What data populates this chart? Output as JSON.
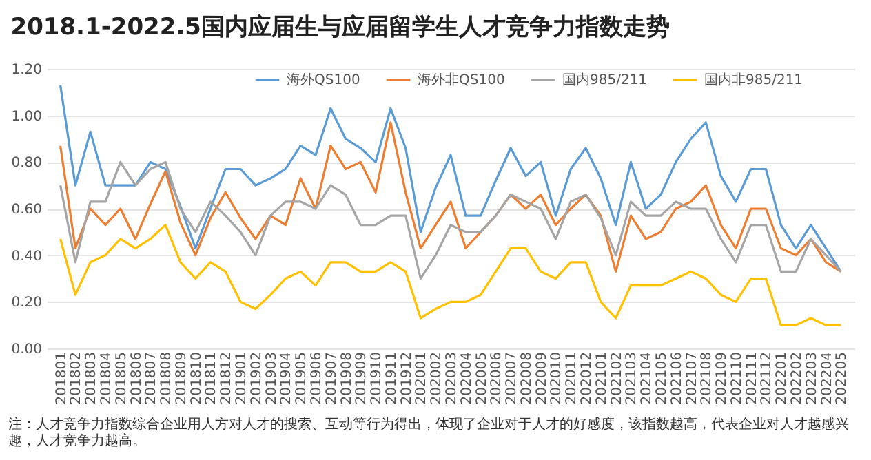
{
  "chart_data": {
    "type": "line",
    "title": "2018.1-2022.5国内应届生与应届留学生人才竞争力指数走势",
    "categories": [
      "201801",
      "201802",
      "201803",
      "201804",
      "201805",
      "201806",
      "201807",
      "201808",
      "201809",
      "201810",
      "201811",
      "201812",
      "201901",
      "201902",
      "201903",
      "201904",
      "201905",
      "201906",
      "201907",
      "201908",
      "201909",
      "201910",
      "201911",
      "201912",
      "202001",
      "202002",
      "202003",
      "202004",
      "202005",
      "202006",
      "202007",
      "202008",
      "202009",
      "202010",
      "202011",
      "202012",
      "202101",
      "202102",
      "202103",
      "202104",
      "202105",
      "202106",
      "202107",
      "202108",
      "202109",
      "202110",
      "202111",
      "202112",
      "202201",
      "202202",
      "202203",
      "202204",
      "202205"
    ],
    "series": [
      {
        "name": "海外QS100",
        "color": "#5b9bd5",
        "values": [
          1.13,
          0.7,
          0.93,
          0.7,
          0.7,
          0.7,
          0.8,
          0.77,
          0.61,
          0.43,
          0.6,
          0.77,
          0.77,
          0.7,
          0.73,
          0.77,
          0.87,
          0.83,
          1.03,
          0.9,
          0.86,
          0.8,
          1.03,
          0.86,
          0.5,
          0.69,
          0.83,
          0.57,
          0.57,
          0.72,
          0.86,
          0.74,
          0.8,
          0.57,
          0.77,
          0.86,
          0.73,
          0.53,
          0.8,
          0.6,
          0.66,
          0.8,
          0.9,
          0.97,
          0.74,
          0.63,
          0.77,
          0.77,
          0.53,
          0.43,
          0.53,
          0.43,
          0.33
        ]
      },
      {
        "name": "海外非QS100",
        "color": "#ed7d31",
        "values": [
          0.87,
          0.43,
          0.6,
          0.53,
          0.6,
          0.47,
          0.62,
          0.76,
          0.54,
          0.4,
          0.56,
          0.67,
          0.56,
          0.47,
          0.57,
          0.53,
          0.73,
          0.6,
          0.87,
          0.77,
          0.8,
          0.67,
          0.97,
          0.67,
          0.43,
          0.53,
          0.63,
          0.43,
          0.5,
          0.57,
          0.66,
          0.6,
          0.66,
          0.53,
          0.6,
          0.66,
          0.57,
          0.33,
          0.57,
          0.47,
          0.5,
          0.6,
          0.63,
          0.7,
          0.53,
          0.43,
          0.6,
          0.6,
          0.43,
          0.4,
          0.47,
          0.37,
          0.33
        ]
      },
      {
        "name": "国内985/211",
        "color": "#a5a5a5",
        "values": [
          0.7,
          0.37,
          0.63,
          0.63,
          0.8,
          0.7,
          0.77,
          0.8,
          0.6,
          0.5,
          0.63,
          0.57,
          0.5,
          0.4,
          0.57,
          0.63,
          0.63,
          0.6,
          0.7,
          0.66,
          0.53,
          0.53,
          0.57,
          0.57,
          0.3,
          0.4,
          0.53,
          0.5,
          0.5,
          0.57,
          0.66,
          0.63,
          0.6,
          0.47,
          0.63,
          0.66,
          0.56,
          0.4,
          0.63,
          0.57,
          0.57,
          0.63,
          0.6,
          0.6,
          0.47,
          0.37,
          0.53,
          0.53,
          0.33,
          0.33,
          0.47,
          0.4,
          0.33
        ]
      },
      {
        "name": "国内非985/211",
        "color": "#ffc000",
        "values": [
          0.47,
          0.23,
          0.37,
          0.4,
          0.47,
          0.43,
          0.47,
          0.53,
          0.37,
          0.3,
          0.37,
          0.33,
          0.2,
          0.17,
          0.23,
          0.3,
          0.33,
          0.27,
          0.37,
          0.37,
          0.33,
          0.33,
          0.37,
          0.33,
          0.13,
          0.17,
          0.2,
          0.2,
          0.23,
          0.33,
          0.43,
          0.43,
          0.33,
          0.3,
          0.37,
          0.37,
          0.2,
          0.13,
          0.27,
          0.27,
          0.27,
          0.3,
          0.33,
          0.3,
          0.23,
          0.2,
          0.3,
          0.3,
          0.1,
          0.1,
          0.13,
          0.1,
          0.1
        ]
      }
    ],
    "ylim": [
      0,
      1.2
    ],
    "yticks": [
      {
        "value": 0,
        "label": "0.00"
      },
      {
        "value": 0.2,
        "label": "0.20"
      },
      {
        "value": 0.4,
        "label": "0.40"
      },
      {
        "value": 0.6,
        "label": "0.60"
      },
      {
        "value": 0.8,
        "label": "0.80"
      },
      {
        "value": 1.0,
        "label": "1.00"
      },
      {
        "value": 1.2,
        "label": "1.20"
      }
    ],
    "grid": "y",
    "legend": "top right",
    "annotations": [
      "注：人才竞争力指数综合企业用人方对人才的搜索、互动等行为得出，体现了企业对于人才的好感度，该指数越高，代表企业对人才越感兴趣，人才竞争力越高。"
    ]
  }
}
